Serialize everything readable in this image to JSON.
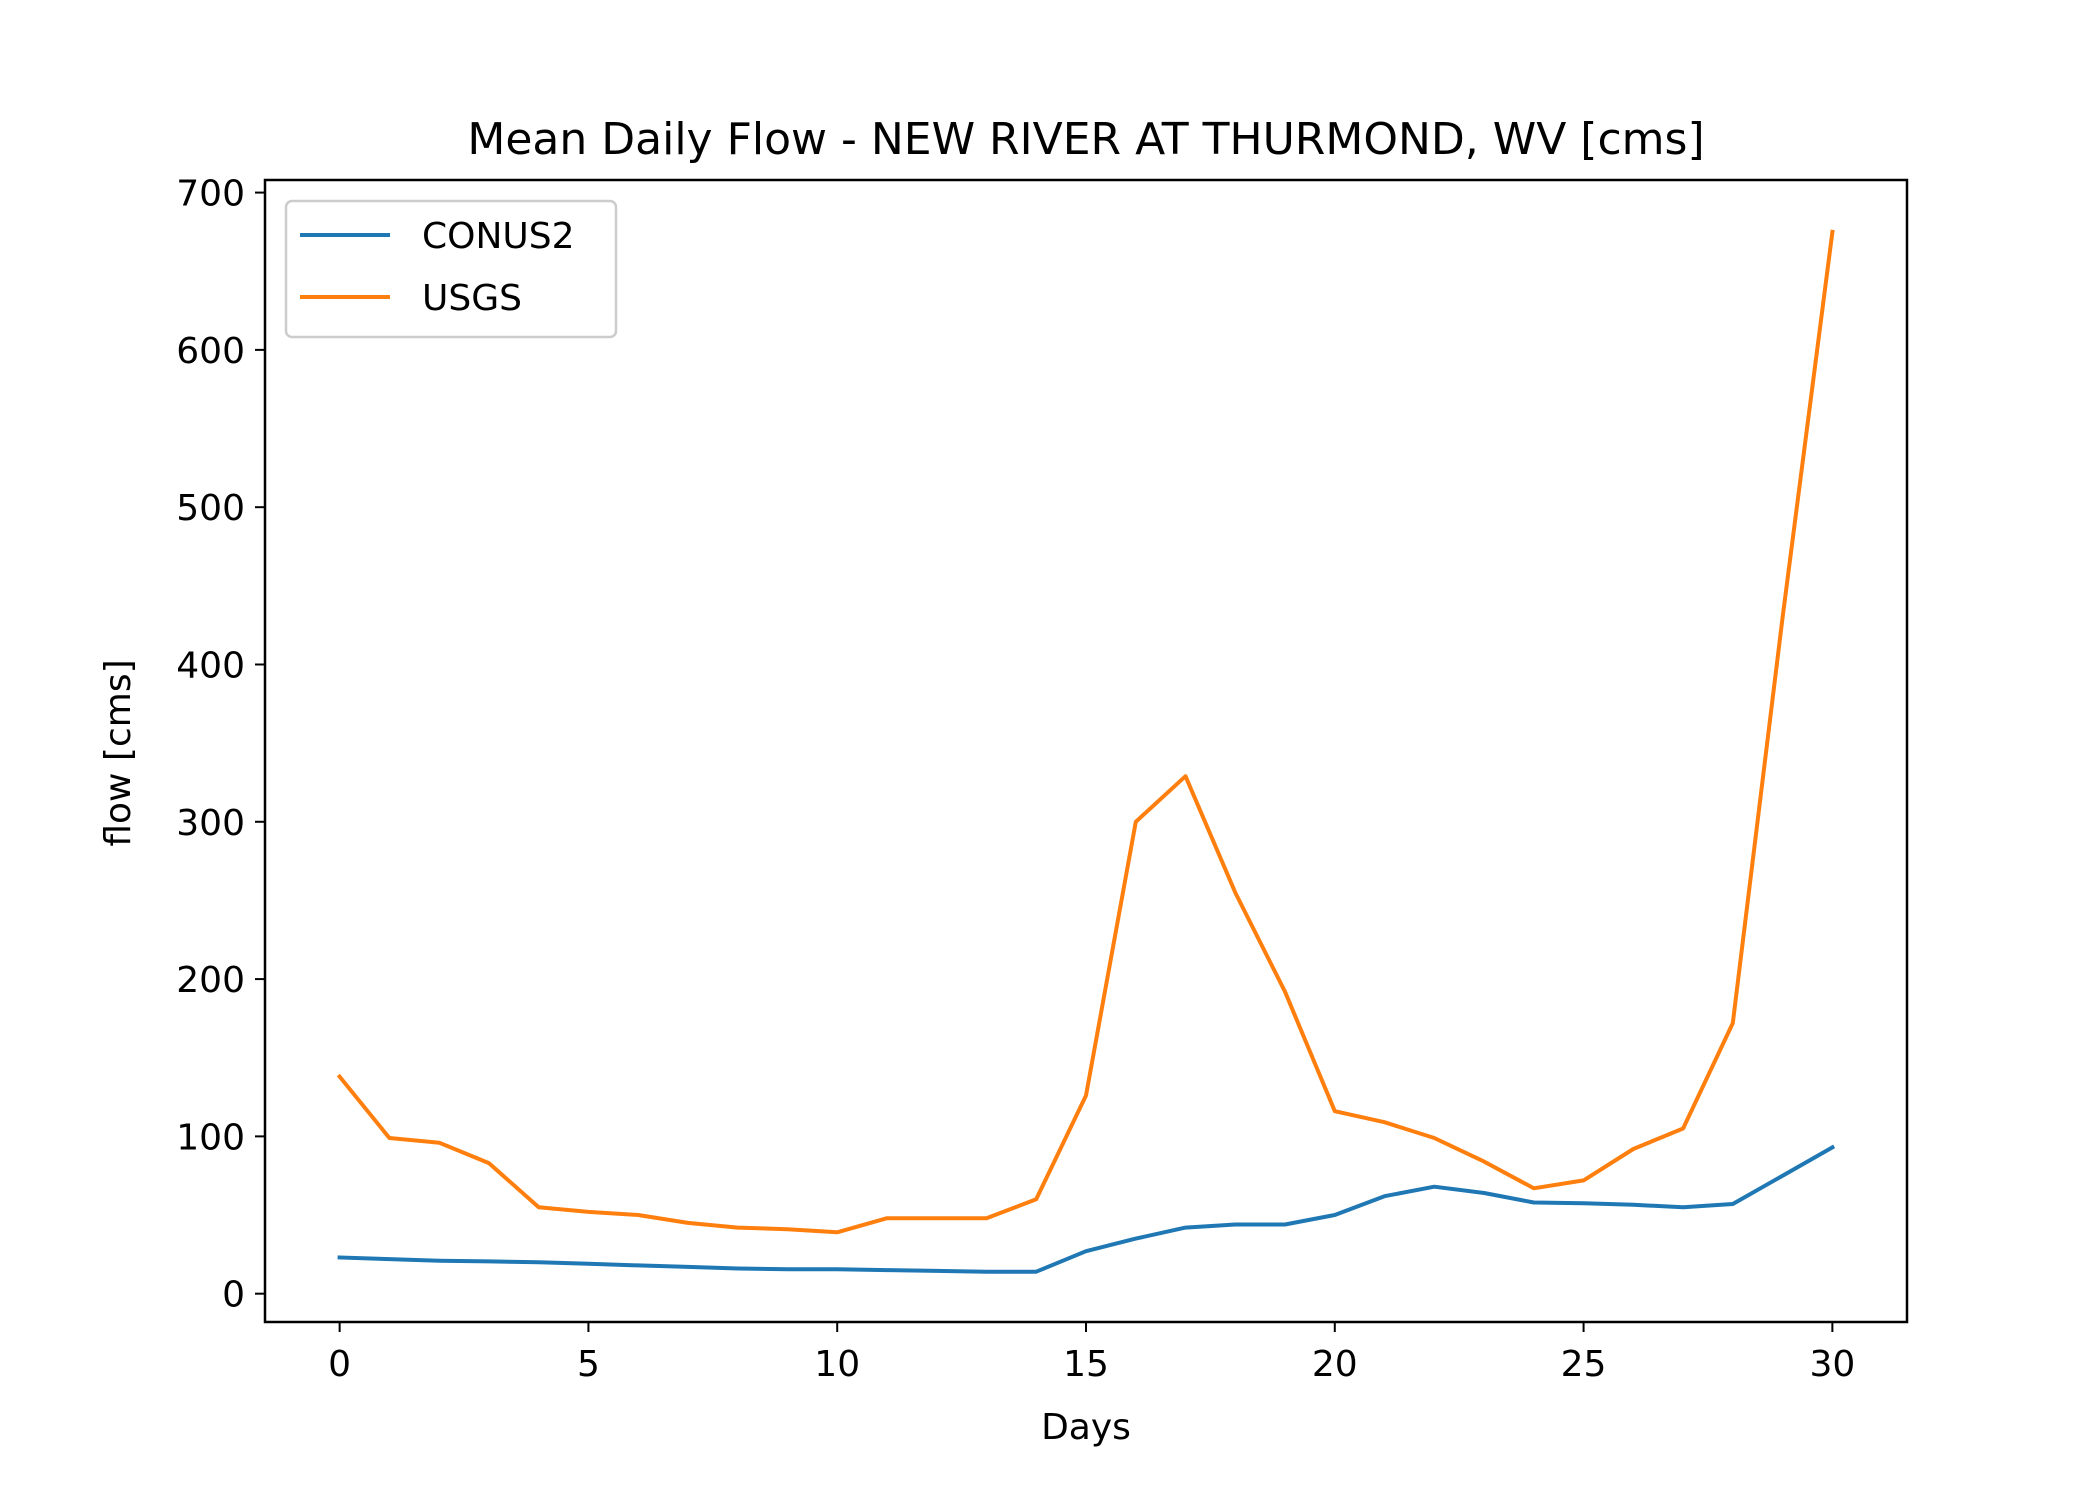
{
  "chart_data": {
    "type": "line",
    "title": "Mean Daily Flow - NEW RIVER AT THURMOND, WV [cms]",
    "xlabel": "Days",
    "ylabel": "flow [cms]",
    "xlim": [
      -1.5,
      31.5
    ],
    "ylim": [
      -18,
      708
    ],
    "xticks": [
      0,
      5,
      10,
      15,
      20,
      25,
      30
    ],
    "yticks": [
      0,
      100,
      200,
      300,
      400,
      500,
      600,
      700
    ],
    "grid": false,
    "legend_position": "upper-left",
    "x": [
      0,
      1,
      2,
      3,
      4,
      5,
      6,
      7,
      8,
      9,
      10,
      11,
      12,
      13,
      14,
      15,
      16,
      17,
      18,
      19,
      20,
      21,
      22,
      23,
      24,
      25,
      26,
      27,
      28,
      29,
      30
    ],
    "series": [
      {
        "name": "CONUS2",
        "color": "#1f77b4",
        "values": [
          23,
          22,
          21,
          20.5,
          20,
          19,
          18,
          17,
          16,
          15.5,
          15.5,
          15,
          14.5,
          14,
          14,
          27,
          35,
          42,
          44,
          44,
          50,
          62,
          68,
          64,
          58,
          57.5,
          56.5,
          55,
          57,
          75,
          93
        ]
      },
      {
        "name": "USGS",
        "color": "#ff7f0e",
        "values": [
          138,
          99,
          96,
          83,
          55,
          52,
          50,
          45,
          42,
          41,
          39,
          48,
          48,
          48,
          60,
          126,
          300,
          329,
          255,
          192,
          116,
          109,
          99,
          84,
          67,
          72,
          92,
          105,
          172,
          430,
          675
        ]
      }
    ]
  }
}
